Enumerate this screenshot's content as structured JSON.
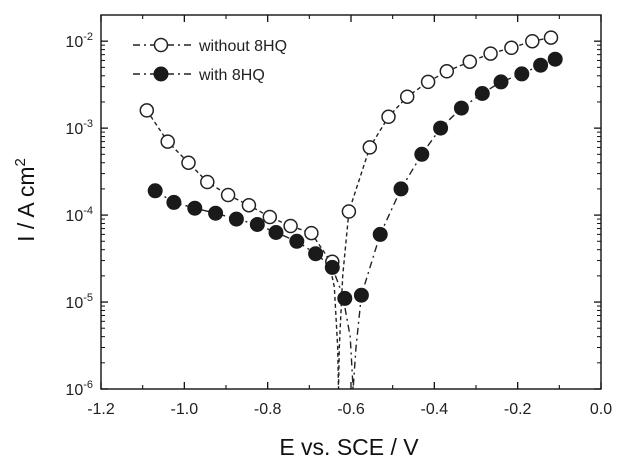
{
  "chart_data": {
    "type": "scatter",
    "xlabel": "E vs. SCE / V",
    "ylabel": "I / A cm",
    "ylabel_superscript": "2",
    "xlim": [
      -1.2,
      0.0
    ],
    "ylim": [
      1e-06,
      0.02
    ],
    "yscale": "log",
    "x_ticks": [
      -1.2,
      -1.0,
      -0.8,
      -0.6,
      -0.4,
      -0.2,
      0.0
    ],
    "x_tick_labels": [
      "-1.2",
      "-1.0",
      "-0.8",
      "-0.6",
      "-0.4",
      "-0.2",
      "0.0"
    ],
    "y_ticks": [
      {
        "value": 1e-06,
        "base": "10",
        "exp": "-6"
      },
      {
        "value": 1e-05,
        "base": "10",
        "exp": "-5"
      },
      {
        "value": 0.0001,
        "base": "10",
        "exp": "-4"
      },
      {
        "value": 0.001,
        "base": "10",
        "exp": "-3"
      },
      {
        "value": 0.01,
        "base": "10",
        "exp": "-2"
      }
    ],
    "grid": false,
    "legend_position": "top-left",
    "series": [
      {
        "name": "without 8HQ",
        "marker": "open-circle",
        "color": "#222222",
        "points": [
          {
            "x": -1.09,
            "y": 0.0016
          },
          {
            "x": -1.04,
            "y": 0.0007
          },
          {
            "x": -0.99,
            "y": 0.0004
          },
          {
            "x": -0.945,
            "y": 0.00024
          },
          {
            "x": -0.895,
            "y": 0.00017
          },
          {
            "x": -0.845,
            "y": 0.00013
          },
          {
            "x": -0.795,
            "y": 9.5e-05
          },
          {
            "x": -0.745,
            "y": 7.5e-05
          },
          {
            "x": -0.695,
            "y": 6.2e-05
          },
          {
            "x": -0.645,
            "y": 2.9e-05
          },
          {
            "x": -0.605,
            "y": 0.00011
          },
          {
            "x": -0.555,
            "y": 0.0006
          },
          {
            "x": -0.51,
            "y": 0.00135
          },
          {
            "x": -0.465,
            "y": 0.0023
          },
          {
            "x": -0.415,
            "y": 0.0034
          },
          {
            "x": -0.37,
            "y": 0.0045
          },
          {
            "x": -0.315,
            "y": 0.0058
          },
          {
            "x": -0.265,
            "y": 0.0072
          },
          {
            "x": -0.215,
            "y": 0.0084
          },
          {
            "x": -0.165,
            "y": 0.01
          },
          {
            "x": -0.12,
            "y": 0.011
          }
        ],
        "curve": [
          {
            "x": -1.09,
            "y": 0.0016
          },
          {
            "x": -1.04,
            "y": 0.0007
          },
          {
            "x": -0.99,
            "y": 0.0004
          },
          {
            "x": -0.945,
            "y": 0.00024
          },
          {
            "x": -0.895,
            "y": 0.00017
          },
          {
            "x": -0.845,
            "y": 0.00013
          },
          {
            "x": -0.795,
            "y": 9.5e-05
          },
          {
            "x": -0.745,
            "y": 7.5e-05
          },
          {
            "x": -0.695,
            "y": 6.2e-05
          },
          {
            "x": -0.655,
            "y": 3.2e-05
          },
          {
            "x": -0.64,
            "y": 1.5e-05
          },
          {
            "x": -0.632,
            "y": 3e-06
          },
          {
            "x": -0.63,
            "y": 1e-06
          },
          {
            "x": -0.628,
            "y": 3e-06
          },
          {
            "x": -0.62,
            "y": 2e-05
          },
          {
            "x": -0.605,
            "y": 0.00011
          },
          {
            "x": -0.555,
            "y": 0.0006
          },
          {
            "x": -0.51,
            "y": 0.00135
          },
          {
            "x": -0.465,
            "y": 0.0023
          },
          {
            "x": -0.415,
            "y": 0.0034
          },
          {
            "x": -0.37,
            "y": 0.0045
          },
          {
            "x": -0.315,
            "y": 0.0058
          },
          {
            "x": -0.265,
            "y": 0.0072
          },
          {
            "x": -0.215,
            "y": 0.0084
          },
          {
            "x": -0.165,
            "y": 0.01
          },
          {
            "x": -0.12,
            "y": 0.011
          }
        ]
      },
      {
        "name": "with 8HQ",
        "marker": "filled-circle",
        "color": "#222222",
        "points": [
          {
            "x": -1.07,
            "y": 0.00019
          },
          {
            "x": -1.025,
            "y": 0.00014
          },
          {
            "x": -0.975,
            "y": 0.00012
          },
          {
            "x": -0.925,
            "y": 0.000105
          },
          {
            "x": -0.875,
            "y": 9e-05
          },
          {
            "x": -0.825,
            "y": 7.8e-05
          },
          {
            "x": -0.78,
            "y": 6.3e-05
          },
          {
            "x": -0.73,
            "y": 5e-05
          },
          {
            "x": -0.685,
            "y": 3.6e-05
          },
          {
            "x": -0.645,
            "y": 2.5e-05
          },
          {
            "x": -0.615,
            "y": 1.1e-05
          },
          {
            "x": -0.575,
            "y": 1.2e-05
          },
          {
            "x": -0.53,
            "y": 6e-05
          },
          {
            "x": -0.48,
            "y": 0.0002
          },
          {
            "x": -0.43,
            "y": 0.0005
          },
          {
            "x": -0.385,
            "y": 0.001
          },
          {
            "x": -0.335,
            "y": 0.0017
          },
          {
            "x": -0.285,
            "y": 0.0025
          },
          {
            "x": -0.24,
            "y": 0.0034
          },
          {
            "x": -0.19,
            "y": 0.0042
          },
          {
            "x": -0.145,
            "y": 0.0053
          },
          {
            "x": -0.11,
            "y": 0.0062
          }
        ],
        "curve": [
          {
            "x": -1.07,
            "y": 0.00019
          },
          {
            "x": -1.025,
            "y": 0.00014
          },
          {
            "x": -0.975,
            "y": 0.00012
          },
          {
            "x": -0.925,
            "y": 0.000105
          },
          {
            "x": -0.875,
            "y": 9e-05
          },
          {
            "x": -0.825,
            "y": 7.8e-05
          },
          {
            "x": -0.78,
            "y": 6.3e-05
          },
          {
            "x": -0.73,
            "y": 5e-05
          },
          {
            "x": -0.685,
            "y": 3.6e-05
          },
          {
            "x": -0.645,
            "y": 2.5e-05
          },
          {
            "x": -0.62,
            "y": 1.2e-05
          },
          {
            "x": -0.602,
            "y": 4e-06
          },
          {
            "x": -0.595,
            "y": 1e-06
          },
          {
            "x": -0.588,
            "y": 3e-06
          },
          {
            "x": -0.575,
            "y": 1.2e-05
          },
          {
            "x": -0.53,
            "y": 6e-05
          },
          {
            "x": -0.48,
            "y": 0.0002
          },
          {
            "x": -0.43,
            "y": 0.0005
          },
          {
            "x": -0.385,
            "y": 0.001
          },
          {
            "x": -0.335,
            "y": 0.0017
          },
          {
            "x": -0.285,
            "y": 0.0025
          },
          {
            "x": -0.24,
            "y": 0.0034
          },
          {
            "x": -0.19,
            "y": 0.0042
          },
          {
            "x": -0.145,
            "y": 0.0053
          },
          {
            "x": -0.11,
            "y": 0.0062
          }
        ]
      }
    ]
  }
}
